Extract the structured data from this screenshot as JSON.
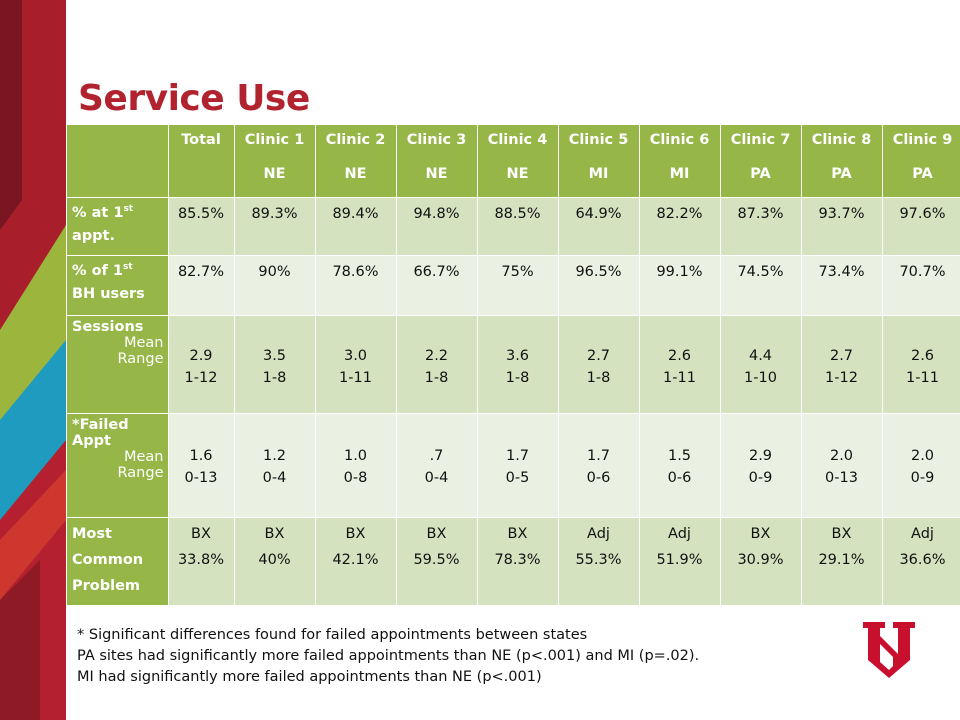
{
  "title": "Service Use",
  "table": {
    "header": [
      {
        "l1": "Total",
        "l2": ""
      },
      {
        "l1": "Clinic 1",
        "l2": "NE"
      },
      {
        "l1": "Clinic 2",
        "l2": "NE"
      },
      {
        "l1": "Clinic 3",
        "l2": "NE"
      },
      {
        "l1": "Clinic 4",
        "l2": "NE"
      },
      {
        "l1": "Clinic 5",
        "l2": "MI"
      },
      {
        "l1": "Clinic 6",
        "l2": "MI"
      },
      {
        "l1": "Clinic 7",
        "l2": "PA"
      },
      {
        "l1": "Clinic 8",
        "l2": "PA"
      },
      {
        "l1": "Clinic 9",
        "l2": "PA"
      }
    ],
    "rows": {
      "first_appt": {
        "label_pre": "% at 1",
        "label_sup": "st",
        "label_l2": "appt.",
        "values": [
          "85.5%",
          "89.3%",
          "89.4%",
          "94.8%",
          "88.5%",
          "64.9%",
          "82.2%",
          "87.3%",
          "93.7%",
          "97.6%"
        ]
      },
      "bh_users": {
        "label_pre": "% of 1",
        "label_sup": "st",
        "label_l2": "BH users",
        "values": [
          "82.7%",
          "90%",
          "78.6%",
          "66.7%",
          "75%",
          "96.5%",
          "99.1%",
          "74.5%",
          "73.4%",
          "70.7%"
        ]
      },
      "sessions": {
        "label": "Sessions",
        "mean_label": "Mean",
        "range_label": "Range",
        "means": [
          "2.9",
          "3.5",
          "3.0",
          "2.2",
          "3.6",
          "2.7",
          "2.6",
          "4.4",
          "2.7",
          "2.6"
        ],
        "ranges": [
          "1-12",
          "1-8",
          "1-11",
          "1-8",
          "1-8",
          "1-8",
          "1-11",
          "1-10",
          "1-12",
          "1-11"
        ]
      },
      "failed": {
        "label_l1": "*Failed",
        "label_l2": "Appt",
        "mean_label": "Mean",
        "range_label": "Range",
        "means": [
          "1.6",
          "1.2",
          "1.0",
          ".7",
          "1.7",
          "1.7",
          "1.5",
          "2.9",
          "2.0",
          "2.0"
        ],
        "ranges": [
          "0-13",
          "0-4",
          "0-8",
          "0-4",
          "0-5",
          "0-6",
          "0-6",
          "0-9",
          "0-13",
          "0-9"
        ]
      },
      "problem": {
        "label_l1": "Most",
        "label_l2": "Common",
        "label_l3": "Problem",
        "types": [
          "BX",
          "BX",
          "BX",
          "BX",
          "BX",
          "Adj",
          "Adj",
          "BX",
          "BX",
          "Adj"
        ],
        "pcts": [
          "33.8%",
          "40%",
          "42.1%",
          "59.5%",
          "78.3%",
          "55.3%",
          "51.9%",
          "30.9%",
          "29.1%",
          "36.6%"
        ]
      }
    }
  },
  "notes": [
    "* Significant differences found for failed appointments between states",
    "PA sites had significantly more failed appointments than NE (p<.001) and MI (p=.02).",
    "MI had significantly more failed appointments than NE (p<.001)"
  ],
  "colors": {
    "title": "#b0232f",
    "header_green": "#96b748",
    "row_dark": "#d5e2c0",
    "row_light": "#ebf1e2",
    "logo_red": "#c8102e"
  },
  "logo_icon": "university-n-logo-icon"
}
